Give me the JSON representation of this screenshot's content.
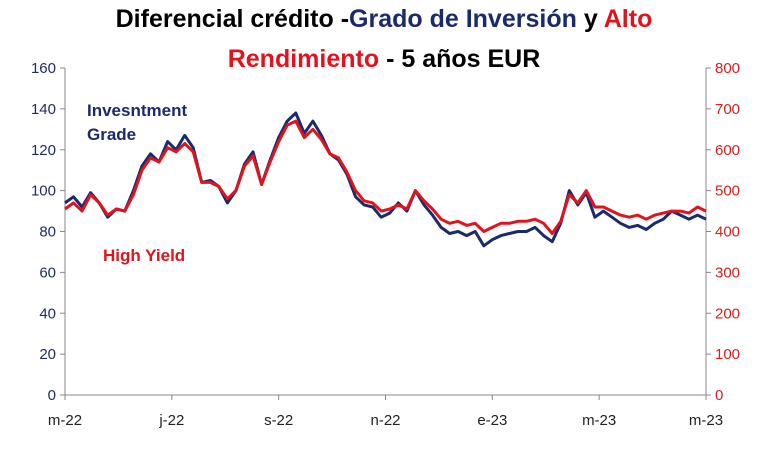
{
  "title": {
    "part1": "Diferencial crédito -",
    "part2": "Grado de Inversión",
    "part3": " y ",
    "part4": "Alto",
    "part5": "Rendimiento",
    "part6": " - 5 años EUR"
  },
  "colors": {
    "investment_grade": "#1b2a6b",
    "high_yield": "#e0141e",
    "title_black": "#000000",
    "axis": "#888888"
  },
  "annotations": {
    "ig_line1": "Invesntment",
    "ig_line2": "Grade",
    "hy": "High Yield"
  },
  "chart_data": {
    "type": "line",
    "x_ticks": [
      "m-22",
      "j-22",
      "s-22",
      "n-22",
      "e-23",
      "m-23",
      "m-23"
    ],
    "y_left": {
      "ticks": [
        "0",
        "20",
        "40",
        "60",
        "80",
        "100",
        "120",
        "140",
        "160"
      ],
      "ylim": [
        0,
        160
      ]
    },
    "y_right": {
      "ticks": [
        "0",
        "100",
        "200",
        "300",
        "400",
        "500",
        "600",
        "700",
        "800"
      ],
      "ylim": [
        0,
        800
      ]
    },
    "x_index_range": [
      0,
      150
    ],
    "series": [
      {
        "name": "Invesntment Grade",
        "axis": "left",
        "color": "#1b2a6b",
        "x": [
          0,
          2,
          4,
          6,
          8,
          10,
          12,
          14,
          16,
          18,
          20,
          22,
          24,
          26,
          28,
          30,
          32,
          34,
          36,
          38,
          40,
          42,
          44,
          46,
          48,
          50,
          52,
          54,
          56,
          58,
          60,
          62,
          64,
          66,
          68,
          70,
          72,
          74,
          76,
          78,
          80,
          82,
          84,
          86,
          88,
          90,
          92,
          94,
          96,
          98,
          100,
          102,
          104,
          106,
          108,
          110,
          112,
          114,
          116,
          118,
          120,
          122,
          124,
          126,
          128,
          130,
          132,
          134,
          136,
          138,
          140,
          142,
          144,
          146,
          148,
          150
        ],
        "values": [
          94,
          97,
          92,
          99,
          94,
          87,
          91,
          90,
          100,
          112,
          118,
          114,
          124,
          120,
          127,
          121,
          104,
          105,
          102,
          94,
          100,
          113,
          119,
          103,
          115,
          126,
          134,
          138,
          128,
          134,
          127,
          118,
          115,
          108,
          97,
          93,
          92,
          87,
          89,
          94,
          90,
          100,
          93,
          88,
          82,
          79,
          80,
          78,
          80,
          73,
          76,
          78,
          79,
          80,
          80,
          82,
          78,
          75,
          84,
          100,
          93,
          99,
          87,
          90,
          87,
          84,
          82,
          83,
          81,
          84,
          86,
          90,
          88,
          86,
          88,
          86
        ]
      },
      {
        "name": "High Yield",
        "axis": "right",
        "color": "#e0141e",
        "x": [
          0,
          2,
          4,
          6,
          8,
          10,
          12,
          14,
          16,
          18,
          20,
          22,
          24,
          26,
          28,
          30,
          32,
          34,
          36,
          38,
          40,
          42,
          44,
          46,
          48,
          50,
          52,
          54,
          56,
          58,
          60,
          62,
          64,
          66,
          68,
          70,
          72,
          74,
          76,
          78,
          80,
          82,
          84,
          86,
          88,
          90,
          92,
          94,
          96,
          98,
          100,
          102,
          104,
          106,
          108,
          110,
          112,
          114,
          116,
          118,
          120,
          122,
          124,
          126,
          128,
          130,
          132,
          134,
          136,
          138,
          140,
          142,
          144,
          146,
          148,
          150
        ],
        "values": [
          455,
          470,
          450,
          490,
          470,
          440,
          455,
          450,
          490,
          550,
          580,
          570,
          605,
          595,
          615,
          595,
          520,
          520,
          510,
          480,
          500,
          560,
          585,
          515,
          570,
          620,
          660,
          670,
          630,
          650,
          625,
          590,
          580,
          545,
          500,
          475,
          470,
          450,
          455,
          465,
          455,
          500,
          475,
          455,
          430,
          420,
          425,
          415,
          420,
          400,
          410,
          420,
          420,
          425,
          425,
          430,
          420,
          395,
          425,
          490,
          470,
          500,
          460,
          460,
          450,
          440,
          435,
          440,
          430,
          440,
          445,
          450,
          450,
          445,
          460,
          450
        ]
      }
    ]
  }
}
